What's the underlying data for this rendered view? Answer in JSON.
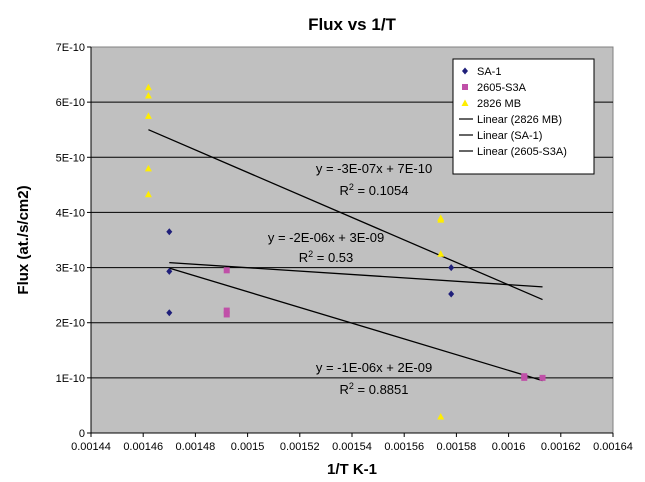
{
  "chart_data": {
    "type": "scatter",
    "title": "Flux vs 1/T",
    "xlabel": "1/T K-1",
    "ylabel": "Flux (at./s/cm2)",
    "xlim": [
      0.00144,
      0.00164
    ],
    "ylim": [
      0,
      7e-10
    ],
    "x_ticks": [
      "0.00144",
      "0.00146",
      "0.00148",
      "0.0015",
      "0.00152",
      "0.00154",
      "0.00156",
      "0.00158",
      "0.0016",
      "0.00162",
      "0.00164"
    ],
    "y_ticks": [
      "0",
      "1E-10",
      "2E-10",
      "3E-10",
      "4E-10",
      "5E-10",
      "6E-10",
      "7E-10"
    ],
    "grid": "horizontal",
    "legend_position": "top-right",
    "series": [
      {
        "name": "SA-1",
        "marker": "diamond",
        "color": "#1f1f7a",
        "points": [
          {
            "x": 0.00147,
            "y": 3.65e-10
          },
          {
            "x": 0.00147,
            "y": 2.93e-10
          },
          {
            "x": 0.00147,
            "y": 2.18e-10
          },
          {
            "x": 0.001578,
            "y": 3e-10
          },
          {
            "x": 0.001578,
            "y": 2.52e-10
          }
        ]
      },
      {
        "name": "2605-S3A",
        "marker": "square",
        "color": "#c050a8",
        "points": [
          {
            "x": 0.001492,
            "y": 2.95e-10
          },
          {
            "x": 0.001492,
            "y": 2.22e-10
          },
          {
            "x": 0.001492,
            "y": 2.15e-10
          },
          {
            "x": 0.001606,
            "y": 1.03e-10
          },
          {
            "x": 0.001606,
            "y": 1e-10
          },
          {
            "x": 0.001613,
            "y": 1e-10
          }
        ]
      },
      {
        "name": "2826 MB",
        "marker": "triangle",
        "color": "#ffee00",
        "points": [
          {
            "x": 0.001462,
            "y": 6.27e-10
          },
          {
            "x": 0.001462,
            "y": 6.12e-10
          },
          {
            "x": 0.001462,
            "y": 5.75e-10
          },
          {
            "x": 0.001462,
            "y": 4.8e-10
          },
          {
            "x": 0.001462,
            "y": 4.33e-10
          },
          {
            "x": 0.001574,
            "y": 3.9e-10
          },
          {
            "x": 0.001574,
            "y": 3.87e-10
          },
          {
            "x": 0.001574,
            "y": 3.25e-10
          },
          {
            "x": 0.001574,
            "y": 3e-11
          }
        ]
      }
    ],
    "trendlines": [
      {
        "name": "Linear (2826 MB)",
        "x": [
          0.001462,
          0.001613
        ],
        "y": [
          5.5e-10,
          2.42e-10
        ],
        "equation": "y = -3E-07x + 7E-10",
        "r2_value": "0.1054"
      },
      {
        "name": "Linear (SA-1)",
        "x": [
          0.00147,
          0.001613
        ],
        "y": [
          3.09e-10,
          2.65e-10
        ],
        "equation": "y = -2E-06x + 3E-09",
        "r2_value": "0.53"
      },
      {
        "name": "Linear (2605-S3A)",
        "x": [
          0.00147,
          0.001613
        ],
        "y": [
          2.99e-10,
          9.5e-11
        ],
        "equation": "y = -1E-06x + 2E-09",
        "r2_value": "0.8851"
      }
    ],
    "r2_prefix": "R",
    "r2_sup": "2",
    "r2_sep": " = ",
    "colors": {
      "plot_background": "#c0c0c0",
      "grid": "#000000",
      "line": "#000000"
    }
  }
}
